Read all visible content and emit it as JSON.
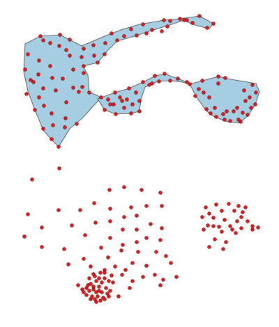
{
  "colors": {
    "background": "#ffffff",
    "polygon_fill": "#a6cee3",
    "polygon_stroke": "#444444",
    "point_fill": "#e31a1c",
    "point_stroke": "#6a0000"
  }
}
